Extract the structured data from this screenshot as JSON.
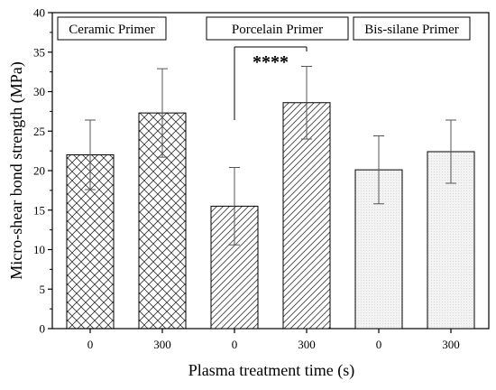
{
  "chart_data": {
    "type": "bar",
    "xlabel": "Plasma treatment time (s)",
    "ylabel": "Micro-shear bond strength (MPa)",
    "ylim": [
      0,
      40
    ],
    "yticks": [
      0,
      5,
      10,
      15,
      20,
      25,
      30,
      35,
      40
    ],
    "grid": false,
    "legend": "none",
    "groups": [
      {
        "label": "Ceramic Primer",
        "pattern": "crosshatch",
        "bars": [
          {
            "category": "0",
            "value": 22.0,
            "error": 4.4
          },
          {
            "category": "300",
            "value": 27.3,
            "error": 5.6
          }
        ]
      },
      {
        "label": "Porcelain Primer",
        "pattern": "diagonal",
        "bars": [
          {
            "category": "0",
            "value": 15.5,
            "error": 4.9
          },
          {
            "category": "300",
            "value": 28.6,
            "error": 4.6
          }
        ]
      },
      {
        "label": "Bis-silane Primer",
        "pattern": "dotted",
        "bars": [
          {
            "category": "0",
            "value": 20.1,
            "error": 4.3
          },
          {
            "category": "300",
            "value": 22.4,
            "error": 4.0
          }
        ]
      }
    ],
    "annotations": [
      {
        "text": "****",
        "between_group": "Porcelain Primer"
      }
    ]
  }
}
